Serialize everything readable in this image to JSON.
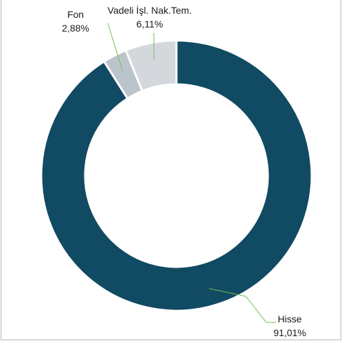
{
  "chart_data": {
    "type": "donut",
    "title": "",
    "legend": "none",
    "start_angle_deg": 0,
    "direction": "clockwise",
    "segments": [
      {
        "label": "Hisse",
        "value_text": "91,01%",
        "value": 91.01,
        "color": "#114a63"
      },
      {
        "label": "Fon",
        "value_text": "2,88%",
        "value": 2.88,
        "color": "#bcc4cb"
      },
      {
        "label": "Vadeli İşl. Nak.Tem.",
        "value_text": "6,11%",
        "value": 6.11,
        "color": "#d4d8dd"
      }
    ],
    "leader_line_color": "#6cc04a",
    "separator_color": "#ffffff"
  }
}
